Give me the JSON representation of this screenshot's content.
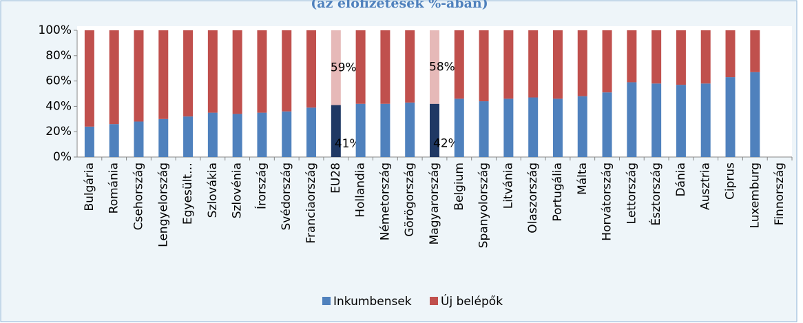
{
  "chart_data": {
    "type": "stacked_bar",
    "title": "(az előfizetések %-ában)",
    "categories": [
      "Bulgária",
      "Románia",
      "Csehország",
      "Lengyelország",
      "Egyesült…",
      "Szlovákia",
      "Szlovénia",
      "Írország",
      "Svédország",
      "Franciaország",
      "EU28",
      "Hollandia",
      "Németország",
      "Görögország",
      "Magyarország",
      "Belgium",
      "Spanyolország",
      "Litvánia",
      "Olaszország",
      "Portugália",
      "Málta",
      "Horvátország",
      "Lettország",
      "Észtország",
      "Dánia",
      "Ausztria",
      "Ciprus",
      "Luxemburg",
      "Finnország"
    ],
    "series": [
      {
        "name": "Inkumbensek",
        "color": "#4f81bd",
        "values": [
          24,
          26,
          28,
          30,
          32,
          35,
          34,
          35,
          36,
          39,
          41,
          42,
          42,
          43,
          42,
          46,
          44,
          46,
          47,
          46,
          48,
          51,
          59,
          58,
          57,
          58,
          63,
          67,
          null
        ],
        "point_colors": [
          null,
          null,
          null,
          null,
          null,
          null,
          null,
          null,
          null,
          null,
          "#1f3864",
          null,
          null,
          null,
          "#1f3864",
          null,
          null,
          null,
          null,
          null,
          null,
          null,
          null,
          null,
          null,
          null,
          null,
          null,
          null
        ],
        "value_labels": [
          null,
          null,
          null,
          null,
          null,
          null,
          null,
          null,
          null,
          null,
          "41%",
          null,
          null,
          null,
          "42%",
          null,
          null,
          null,
          null,
          null,
          null,
          null,
          null,
          null,
          null,
          null,
          null,
          null,
          null
        ]
      },
      {
        "name": "Új belépők",
        "color": "#c0504d",
        "values": [
          76,
          74,
          72,
          70,
          68,
          65,
          66,
          65,
          64,
          61,
          59,
          58,
          58,
          57,
          58,
          54,
          56,
          54,
          53,
          54,
          52,
          49,
          41,
          42,
          43,
          42,
          37,
          33,
          null
        ],
        "point_colors": [
          null,
          null,
          null,
          null,
          null,
          null,
          null,
          null,
          null,
          null,
          "#e6b9b8",
          null,
          null,
          null,
          "#e6b9b8",
          null,
          null,
          null,
          null,
          null,
          null,
          null,
          null,
          null,
          null,
          null,
          null,
          null,
          null
        ],
        "value_labels": [
          null,
          null,
          null,
          null,
          null,
          null,
          null,
          null,
          null,
          null,
          "59%",
          null,
          null,
          null,
          "58%",
          null,
          null,
          null,
          null,
          null,
          null,
          null,
          null,
          null,
          null,
          null,
          null,
          null,
          null
        ]
      }
    ],
    "ylim": [
      0,
      100
    ],
    "yticks": [
      {
        "value": 0,
        "label": "0%"
      },
      {
        "value": 20,
        "label": "20%"
      },
      {
        "value": 40,
        "label": "40%"
      },
      {
        "value": 60,
        "label": "60%"
      },
      {
        "value": 80,
        "label": "80%"
      },
      {
        "value": 100,
        "label": "100%"
      }
    ],
    "grid": false,
    "legend": "bottom"
  }
}
